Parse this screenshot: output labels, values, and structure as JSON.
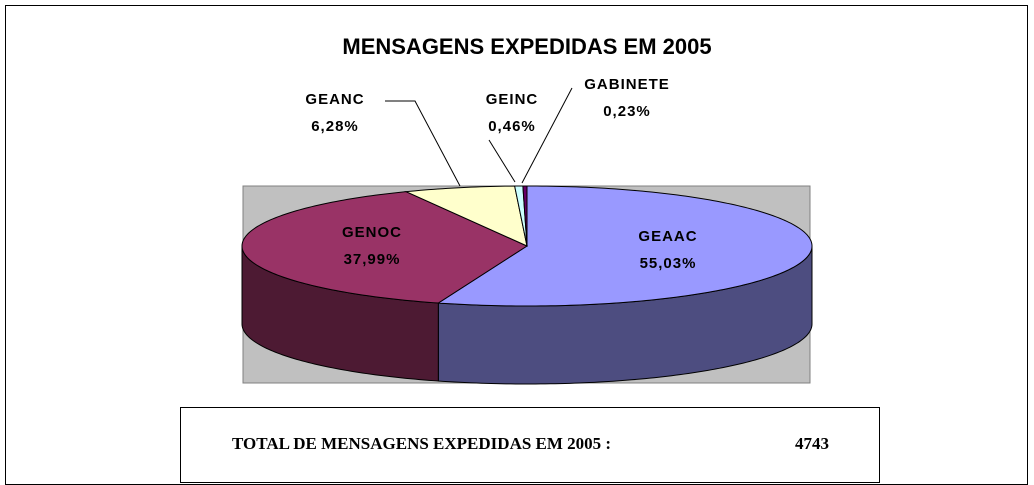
{
  "chart_data": {
    "type": "pie3d",
    "title": "MENSAGENS EXPEDIDAS EM 2005",
    "categories": [
      "GEAAC",
      "GENOC",
      "GEANC",
      "GEINC",
      "GABINETE"
    ],
    "values": [
      55.03,
      37.99,
      6.28,
      0.46,
      0.23
    ],
    "value_labels": [
      "55,03%",
      "37,99%",
      "6,28%",
      "0,46%",
      "0,23%"
    ],
    "colors": [
      "#9999ff",
      "#993366",
      "#ffffcc",
      "#ccffff",
      "#660066"
    ],
    "total_label": "TOTAL DE MENSAGENS EXPEDIDAS EM 2005 :",
    "total_value": 4743
  }
}
